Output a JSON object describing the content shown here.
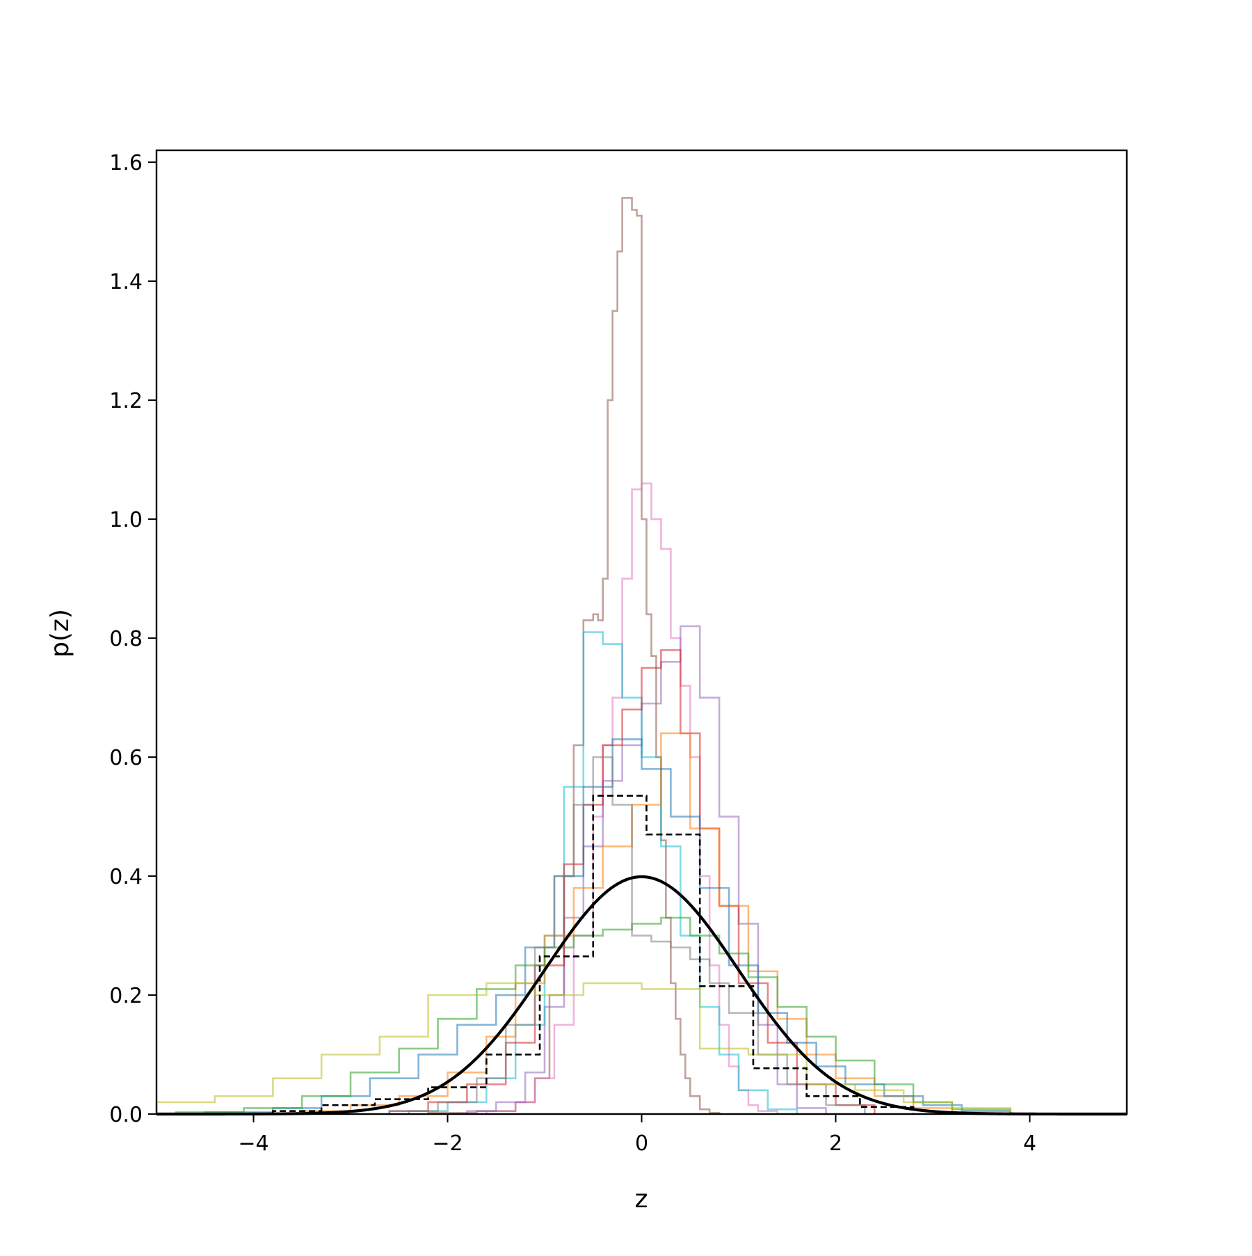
{
  "chart_data": {
    "type": "histogram",
    "title": "",
    "xlabel": "z",
    "ylabel": "p(z)",
    "xlim": [
      -5,
      5
    ],
    "ylim": [
      0,
      1.62
    ],
    "xticks": [
      -4,
      -2,
      0,
      2,
      4
    ],
    "xtick_labels": [
      "−4",
      "−2",
      "0",
      "2",
      "4"
    ],
    "yticks": [
      0.0,
      0.2,
      0.4,
      0.6,
      0.8,
      1.0,
      1.2,
      1.4,
      1.6
    ],
    "ytick_labels": [
      "0.0",
      "0.2",
      "0.4",
      "0.6",
      "0.8",
      "1.0",
      "1.2",
      "1.4",
      "1.6"
    ],
    "grid": false,
    "legend": "none",
    "step_series": [
      {
        "color": "#8c564b",
        "edges": [
          -2.2,
          -1.7,
          -1.3,
          -1.1,
          -0.95,
          -0.8,
          -0.7,
          -0.6,
          -0.5,
          -0.45,
          -0.4,
          -0.35,
          -0.3,
          -0.25,
          -0.2,
          -0.15,
          -0.1,
          -0.05,
          0.0,
          0.05,
          0.1,
          0.15,
          0.2,
          0.25,
          0.3,
          0.35,
          0.4,
          0.45,
          0.5,
          0.6,
          0.7,
          0.8
        ],
        "values": [
          0.002,
          0.005,
          0.02,
          0.06,
          0.2,
          0.4,
          0.62,
          0.83,
          0.84,
          0.83,
          0.9,
          1.2,
          1.35,
          1.45,
          1.54,
          1.54,
          1.52,
          1.51,
          1.0,
          0.84,
          0.77,
          0.6,
          0.46,
          0.33,
          0.22,
          0.16,
          0.1,
          0.06,
          0.03,
          0.008,
          0.002
        ]
      },
      {
        "color": "#e377c2",
        "edges": [
          -1.6,
          -1.3,
          -1.1,
          -0.9,
          -0.7,
          -0.5,
          -0.4,
          -0.3,
          -0.2,
          -0.1,
          0.0,
          0.1,
          0.2,
          0.3,
          0.4,
          0.5,
          0.6,
          0.7,
          0.8,
          0.9,
          1.0,
          1.1,
          1.2,
          1.4
        ],
        "values": [
          0.005,
          0.02,
          0.06,
          0.15,
          0.3,
          0.5,
          0.62,
          0.7,
          0.9,
          1.05,
          1.06,
          1.0,
          0.95,
          0.8,
          0.72,
          0.6,
          0.4,
          0.25,
          0.15,
          0.08,
          0.04,
          0.015,
          0.005
        ]
      },
      {
        "color": "#9467bd",
        "edges": [
          -1.8,
          -1.5,
          -1.2,
          -1.0,
          -0.8,
          -0.6,
          -0.4,
          -0.2,
          0.0,
          0.2,
          0.4,
          0.6,
          0.8,
          1.0,
          1.2,
          1.4,
          1.6,
          1.9
        ],
        "values": [
          0.005,
          0.02,
          0.07,
          0.18,
          0.33,
          0.45,
          0.56,
          0.62,
          0.69,
          0.76,
          0.82,
          0.7,
          0.5,
          0.32,
          0.15,
          0.05,
          0.01
        ]
      },
      {
        "color": "#17becf",
        "edges": [
          -2.4,
          -2.0,
          -1.6,
          -1.3,
          -1.0,
          -0.8,
          -0.6,
          -0.4,
          -0.2,
          0.0,
          0.2,
          0.4,
          0.6,
          0.8,
          1.0,
          1.3,
          1.6
        ],
        "values": [
          0.005,
          0.02,
          0.06,
          0.15,
          0.3,
          0.55,
          0.81,
          0.79,
          0.7,
          0.6,
          0.45,
          0.3,
          0.18,
          0.1,
          0.04,
          0.008
        ]
      },
      {
        "color": "#d62728",
        "edges": [
          -2.6,
          -2.2,
          -1.8,
          -1.4,
          -1.1,
          -0.8,
          -0.6,
          -0.4,
          -0.2,
          0.0,
          0.2,
          0.4,
          0.6,
          0.8,
          1.0,
          1.3,
          1.6,
          2.0,
          2.4
        ],
        "values": [
          0.005,
          0.02,
          0.05,
          0.12,
          0.25,
          0.42,
          0.52,
          0.62,
          0.68,
          0.75,
          0.78,
          0.64,
          0.48,
          0.35,
          0.22,
          0.12,
          0.05,
          0.015
        ]
      },
      {
        "color": "#ff7f0e",
        "edges": [
          -3.5,
          -3.0,
          -2.5,
          -2.0,
          -1.6,
          -1.3,
          -1.0,
          -0.7,
          -0.4,
          -0.1,
          0.2,
          0.5,
          0.8,
          1.1,
          1.4,
          1.7,
          2.0,
          2.4,
          2.8,
          3.2
        ],
        "values": [
          0.005,
          0.015,
          0.03,
          0.07,
          0.13,
          0.22,
          0.3,
          0.38,
          0.45,
          0.52,
          0.64,
          0.48,
          0.35,
          0.24,
          0.16,
          0.1,
          0.06,
          0.03,
          0.01
        ]
      },
      {
        "color": "#1f77b4",
        "edges": [
          -4.5,
          -3.8,
          -3.3,
          -2.8,
          -2.3,
          -1.9,
          -1.5,
          -1.2,
          -0.9,
          -0.6,
          -0.3,
          0.0,
          0.3,
          0.6,
          0.9,
          1.2,
          1.5,
          1.8,
          2.1,
          2.5,
          2.9,
          3.3,
          3.8
        ],
        "values": [
          0.003,
          0.01,
          0.03,
          0.06,
          0.1,
          0.15,
          0.2,
          0.28,
          0.4,
          0.55,
          0.63,
          0.58,
          0.5,
          0.38,
          0.25,
          0.17,
          0.12,
          0.08,
          0.05,
          0.03,
          0.015,
          0.005
        ]
      },
      {
        "color": "#2ca02c",
        "edges": [
          -4.8,
          -4.1,
          -3.5,
          -3.0,
          -2.5,
          -2.1,
          -1.7,
          -1.3,
          -1.0,
          -0.7,
          -0.4,
          -0.1,
          0.2,
          0.5,
          0.8,
          1.1,
          1.4,
          1.7,
          2.0,
          2.4,
          2.8,
          3.2,
          3.8
        ],
        "values": [
          0.003,
          0.01,
          0.03,
          0.07,
          0.11,
          0.16,
          0.21,
          0.25,
          0.28,
          0.3,
          0.31,
          0.32,
          0.33,
          0.3,
          0.27,
          0.23,
          0.18,
          0.13,
          0.09,
          0.05,
          0.02,
          0.008
        ]
      },
      {
        "color": "#7f7f7f",
        "edges": [
          -2.6,
          -2.1,
          -1.7,
          -1.4,
          -1.1,
          -0.9,
          -0.7,
          -0.5,
          -0.3,
          -0.1,
          0.1,
          0.3,
          0.5,
          0.7,
          0.9,
          1.2,
          1.5,
          1.9,
          2.3
        ],
        "values": [
          0.005,
          0.02,
          0.06,
          0.15,
          0.28,
          0.4,
          0.52,
          0.6,
          0.52,
          0.3,
          0.29,
          0.28,
          0.26,
          0.22,
          0.17,
          0.1,
          0.05,
          0.015
        ]
      },
      {
        "color": "#bcbd22",
        "edges": [
          -5.0,
          -4.4,
          -3.8,
          -3.3,
          -2.7,
          -2.2,
          -1.6,
          -1.1,
          -0.6,
          0.0,
          0.6,
          1.1,
          1.7,
          2.2,
          2.7,
          3.2,
          3.8
        ],
        "values": [
          0.02,
          0.03,
          0.06,
          0.1,
          0.13,
          0.2,
          0.22,
          0.2,
          0.22,
          0.21,
          0.11,
          0.1,
          0.05,
          0.04,
          0.02,
          0.01
        ]
      },
      {
        "color": "#000000",
        "dashed": true,
        "edges": [
          -3.8,
          -3.3,
          -2.75,
          -2.2,
          -1.6,
          -1.05,
          -0.5,
          0.05,
          0.6,
          1.15,
          1.7,
          2.25,
          2.8
        ],
        "values": [
          0.005,
          0.015,
          0.025,
          0.045,
          0.1,
          0.265,
          0.535,
          0.47,
          0.215,
          0.077,
          0.03,
          0.012
        ]
      }
    ],
    "curve": {
      "type": "normal_pdf",
      "mean": 0,
      "sd": 1,
      "color": "#000000"
    }
  }
}
